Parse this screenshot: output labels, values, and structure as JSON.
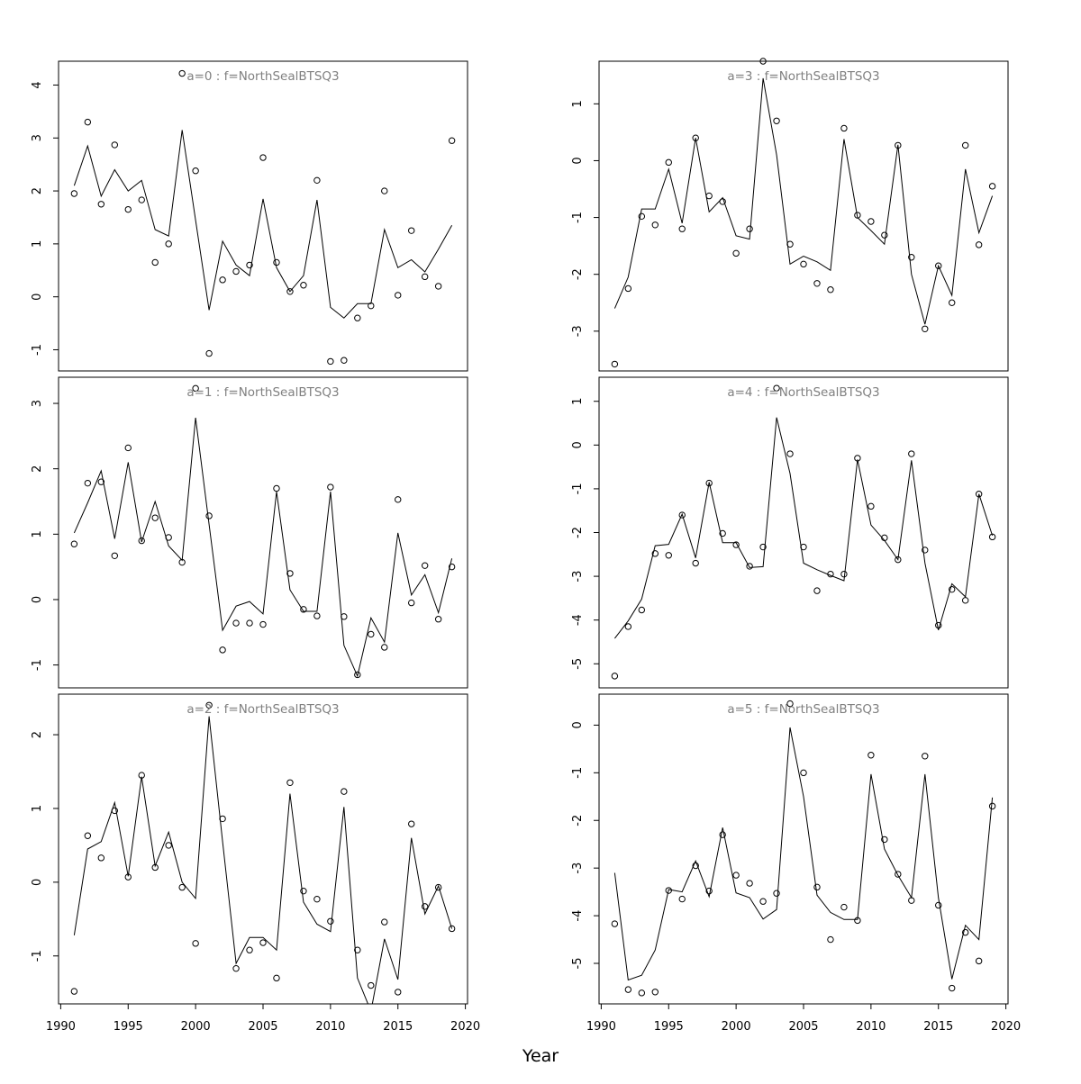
{
  "xlabel": "Year",
  "chart_data": [
    {
      "type": "line",
      "title": "a=0  :  f=NorthSealBTSQ3",
      "x": [
        1991,
        1992,
        1993,
        1994,
        1995,
        1996,
        1997,
        1998,
        1999,
        2000,
        2001,
        2002,
        2003,
        2004,
        2005,
        2006,
        2007,
        2008,
        2009,
        2010,
        2011,
        2012,
        2013,
        2014,
        2015,
        2016,
        2017,
        2018,
        2019
      ],
      "series": [
        {
          "style": "line",
          "values": [
            2.1,
            2.85,
            1.9,
            2.4,
            2.0,
            2.2,
            1.27,
            1.15,
            3.15,
            1.45,
            -0.25,
            1.05,
            0.6,
            0.4,
            1.85,
            0.55,
            0.1,
            0.4,
            1.83,
            -0.2,
            -0.4,
            -0.13,
            -0.13,
            1.27,
            0.55,
            0.7,
            0.47,
            0.9,
            1.35
          ]
        },
        {
          "style": "points",
          "values": [
            1.95,
            3.3,
            1.75,
            2.87,
            1.65,
            1.83,
            0.65,
            1.0,
            4.22,
            2.38,
            -1.07,
            0.32,
            0.48,
            0.6,
            2.63,
            0.65,
            0.1,
            0.22,
            2.2,
            -1.22,
            -1.2,
            -0.4,
            -0.17,
            2.0,
            0.03,
            1.25,
            0.38,
            0.2,
            2.95
          ]
        }
      ],
      "ylim": [
        -1.4,
        4.45
      ],
      "yticks": [
        -1,
        0,
        1,
        2,
        3,
        4
      ]
    },
    {
      "type": "line",
      "title": "a=3  :  f=NorthSealBTSQ3",
      "x": [
        1991,
        1992,
        1993,
        1994,
        1995,
        1996,
        1997,
        1998,
        1999,
        2000,
        2001,
        2002,
        2003,
        2004,
        2005,
        2006,
        2007,
        2008,
        2009,
        2010,
        2011,
        2012,
        2013,
        2014,
        2015,
        2016,
        2017,
        2018,
        2019
      ],
      "series": [
        {
          "style": "line",
          "values": [
            -2.6,
            -2.05,
            -0.85,
            -0.85,
            -0.15,
            -1.1,
            0.4,
            -0.9,
            -0.65,
            -1.32,
            -1.38,
            1.45,
            0.1,
            -1.82,
            -1.68,
            -1.78,
            -1.93,
            0.38,
            -1.0,
            -1.23,
            -1.47,
            0.28,
            -2.0,
            -2.88,
            -1.85,
            -2.37,
            -0.15,
            -1.27,
            -0.62
          ]
        },
        {
          "style": "points",
          "values": [
            -3.58,
            -2.25,
            -0.98,
            -1.13,
            -0.03,
            -1.2,
            0.4,
            -0.62,
            -0.72,
            -1.63,
            -1.2,
            1.75,
            0.7,
            -1.47,
            -1.82,
            -2.16,
            -2.27,
            0.57,
            -0.96,
            -1.07,
            -1.31,
            0.27,
            -1.7,
            -2.96,
            -1.85,
            -2.5,
            0.27,
            -1.48,
            -0.45
          ]
        }
      ],
      "ylim": [
        -3.7,
        1.75
      ],
      "yticks": [
        -3,
        -2,
        -1,
        0,
        1
      ]
    },
    {
      "type": "line",
      "title": "a=1  :  f=NorthSealBTSQ3",
      "x": [
        1991,
        1992,
        1993,
        1994,
        1995,
        1996,
        1997,
        1998,
        1999,
        2000,
        2001,
        2002,
        2003,
        2004,
        2005,
        2006,
        2007,
        2008,
        2009,
        2010,
        2011,
        2012,
        2013,
        2014,
        2015,
        2016,
        2017,
        2018,
        2019
      ],
      "series": [
        {
          "style": "line",
          "values": [
            1.02,
            1.48,
            1.97,
            0.93,
            2.1,
            0.88,
            1.5,
            0.82,
            0.6,
            2.78,
            1.15,
            -0.47,
            -0.1,
            -0.03,
            -0.22,
            1.65,
            0.15,
            -0.18,
            -0.18,
            1.65,
            -0.7,
            -1.17,
            -0.28,
            -0.65,
            1.02,
            0.07,
            0.38,
            -0.2,
            0.63
          ]
        },
        {
          "style": "points",
          "values": [
            0.85,
            1.78,
            1.8,
            0.67,
            2.32,
            0.9,
            1.25,
            0.95,
            0.57,
            3.23,
            1.28,
            -0.77,
            -0.36,
            -0.36,
            -0.38,
            1.7,
            0.4,
            -0.15,
            -0.25,
            1.72,
            -0.26,
            -1.15,
            -0.53,
            -0.73,
            1.53,
            -0.05,
            0.52,
            -0.3,
            0.5
          ]
        }
      ],
      "ylim": [
        -1.35,
        3.4
      ],
      "yticks": [
        -1,
        0,
        1,
        2,
        3
      ]
    },
    {
      "type": "line",
      "title": "a=4  :  f=NorthSealBTSQ3",
      "x": [
        1991,
        1992,
        1993,
        1994,
        1995,
        1996,
        1997,
        1998,
        1999,
        2000,
        2001,
        2002,
        2003,
        2004,
        2005,
        2006,
        2007,
        2008,
        2009,
        2010,
        2011,
        2012,
        2013,
        2014,
        2015,
        2016,
        2017,
        2018,
        2019
      ],
      "series": [
        {
          "style": "line",
          "values": [
            -4.42,
            -4.02,
            -3.52,
            -2.3,
            -2.27,
            -1.58,
            -2.58,
            -0.85,
            -2.23,
            -2.23,
            -2.8,
            -2.78,
            0.63,
            -0.65,
            -2.7,
            -2.85,
            -2.98,
            -3.1,
            -0.33,
            -1.83,
            -2.18,
            -2.62,
            -0.35,
            -2.7,
            -4.23,
            -3.17,
            -3.47,
            -1.12,
            -2.07
          ]
        },
        {
          "style": "points",
          "values": [
            -5.28,
            -4.15,
            -3.77,
            -2.48,
            -2.52,
            -1.6,
            -2.7,
            -0.87,
            -2.02,
            -2.28,
            -2.77,
            -2.33,
            1.3,
            -0.2,
            -2.33,
            -3.33,
            -2.95,
            -2.95,
            -0.3,
            -1.4,
            -2.12,
            -2.62,
            -0.2,
            -2.4,
            -4.12,
            -3.3,
            -3.55,
            -1.12,
            -2.1
          ]
        }
      ],
      "ylim": [
        -5.55,
        1.55
      ],
      "yticks": [
        -5,
        -4,
        -3,
        -2,
        -1,
        0,
        1
      ]
    },
    {
      "type": "line",
      "title": "a=2  :  f=NorthSealBTSQ3",
      "x": [
        1991,
        1992,
        1993,
        1994,
        1995,
        1996,
        1997,
        1998,
        1999,
        2000,
        2001,
        2002,
        2003,
        2004,
        2005,
        2006,
        2007,
        2008,
        2009,
        2010,
        2011,
        2012,
        2013,
        2014,
        2015,
        2016,
        2017,
        2018,
        2019
      ],
      "series": [
        {
          "style": "line",
          "values": [
            -0.72,
            0.45,
            0.55,
            1.08,
            0.08,
            1.43,
            0.22,
            0.68,
            0.0,
            -0.22,
            2.25,
            0.55,
            -1.1,
            -0.75,
            -0.75,
            -0.92,
            1.2,
            -0.27,
            -0.57,
            -0.67,
            1.02,
            -1.3,
            -1.75,
            -0.77,
            -1.32,
            0.6,
            -0.43,
            -0.05,
            -0.63
          ]
        },
        {
          "style": "points",
          "values": [
            -1.48,
            0.63,
            0.33,
            0.97,
            0.07,
            1.45,
            0.2,
            0.5,
            -0.07,
            -0.83,
            2.4,
            0.86,
            -1.17,
            -0.92,
            -0.82,
            -1.3,
            1.35,
            -0.12,
            -0.23,
            -0.53,
            1.23,
            -0.92,
            -1.4,
            -0.54,
            -1.49,
            0.79,
            -0.33,
            -0.07,
            -0.63
          ]
        }
      ],
      "ylim": [
        -1.65,
        2.55
      ],
      "yticks": [
        -1,
        0,
        1,
        2
      ]
    },
    {
      "type": "line",
      "title": "a=5  :  f=NorthSealBTSQ3",
      "x": [
        1991,
        1992,
        1993,
        1994,
        1995,
        1996,
        1997,
        1998,
        1999,
        2000,
        2001,
        2002,
        2003,
        2004,
        2005,
        2006,
        2007,
        2008,
        2009,
        2010,
        2011,
        2012,
        2013,
        2014,
        2015,
        2016,
        2017,
        2018,
        2019
      ],
      "series": [
        {
          "style": "line",
          "values": [
            -3.1,
            -5.35,
            -5.25,
            -4.72,
            -3.45,
            -3.5,
            -2.85,
            -3.6,
            -2.15,
            -3.52,
            -3.62,
            -4.07,
            -3.87,
            -0.05,
            -1.5,
            -3.57,
            -3.93,
            -4.08,
            -4.08,
            -1.03,
            -2.6,
            -3.15,
            -3.62,
            -1.03,
            -3.62,
            -5.33,
            -4.2,
            -4.5,
            -1.52
          ]
        },
        {
          "style": "points",
          "values": [
            -4.17,
            -5.55,
            -5.62,
            -5.6,
            -3.47,
            -3.65,
            -2.95,
            -3.48,
            -2.3,
            -3.15,
            -3.32,
            -3.7,
            -3.53,
            0.45,
            -1.0,
            -3.4,
            -4.5,
            -3.82,
            -4.1,
            -0.63,
            -2.4,
            -3.13,
            -3.68,
            -0.65,
            -3.78,
            -5.52,
            -4.35,
            -4.95,
            -1.7
          ]
        }
      ],
      "ylim": [
        -5.85,
        0.65
      ],
      "yticks": [
        -5,
        -4,
        -3,
        -2,
        -1,
        0
      ]
    }
  ]
}
